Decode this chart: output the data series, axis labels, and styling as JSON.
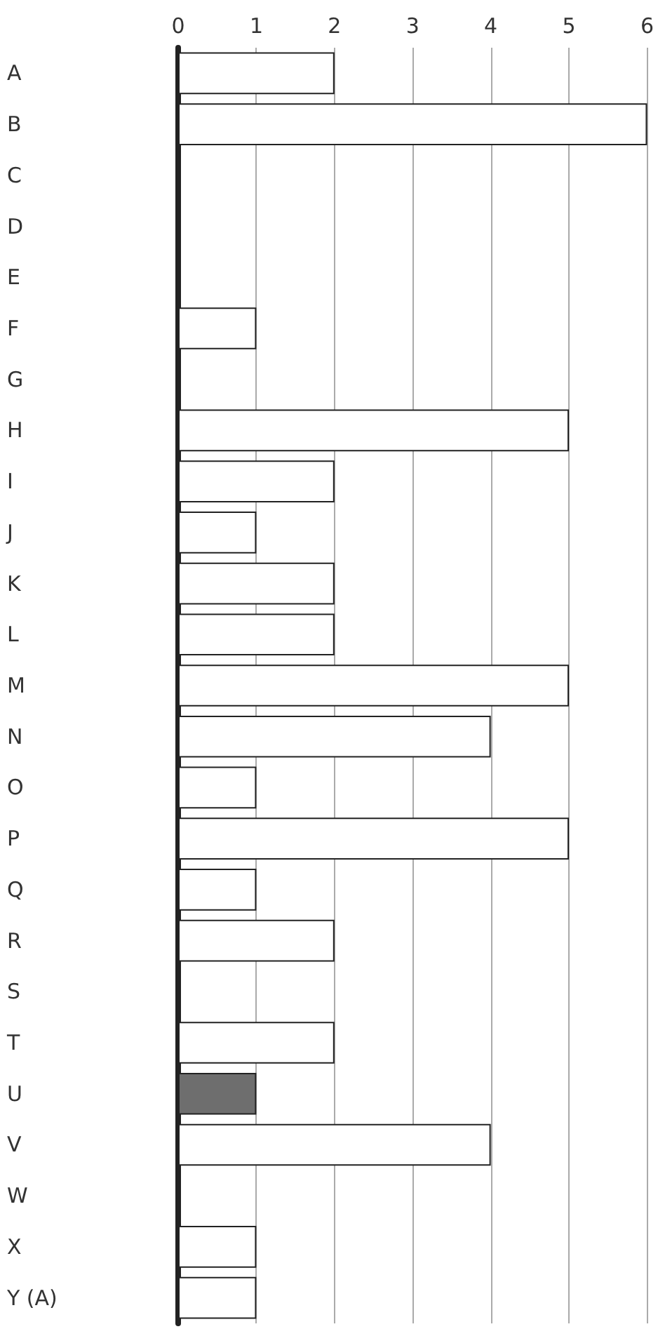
{
  "chart_data": {
    "type": "bar",
    "orientation": "horizontal",
    "categories": [
      "A",
      "B",
      "C",
      "D",
      "E",
      "F",
      "G",
      "H",
      "I",
      "J",
      "K",
      "L",
      "M",
      "N",
      "O",
      "P",
      "Q",
      "R",
      "S",
      "T",
      "U",
      "V",
      "W",
      "X",
      "Y (A)"
    ],
    "values": [
      2,
      6,
      0,
      0,
      0,
      1,
      0,
      5,
      2,
      1,
      2,
      2,
      5,
      4,
      1,
      5,
      1,
      2,
      0,
      2,
      1,
      4,
      0,
      1,
      1
    ],
    "colors": [
      "#ffffff",
      "#ffffff",
      "#ffffff",
      "#ffffff",
      "#ffffff",
      "#ffffff",
      "#ffffff",
      "#ffffff",
      "#ffffff",
      "#ffffff",
      "#ffffff",
      "#ffffff",
      "#ffffff",
      "#ffffff",
      "#ffffff",
      "#ffffff",
      "#ffffff",
      "#ffffff",
      "#ffffff",
      "#ffffff",
      "#6e6e6e",
      "#ffffff",
      "#ffffff",
      "#ffffff",
      "#ffffff"
    ],
    "xlim": [
      0,
      6
    ],
    "xticks": [
      0,
      1,
      2,
      3,
      4,
      5,
      6
    ],
    "grid": "x"
  }
}
